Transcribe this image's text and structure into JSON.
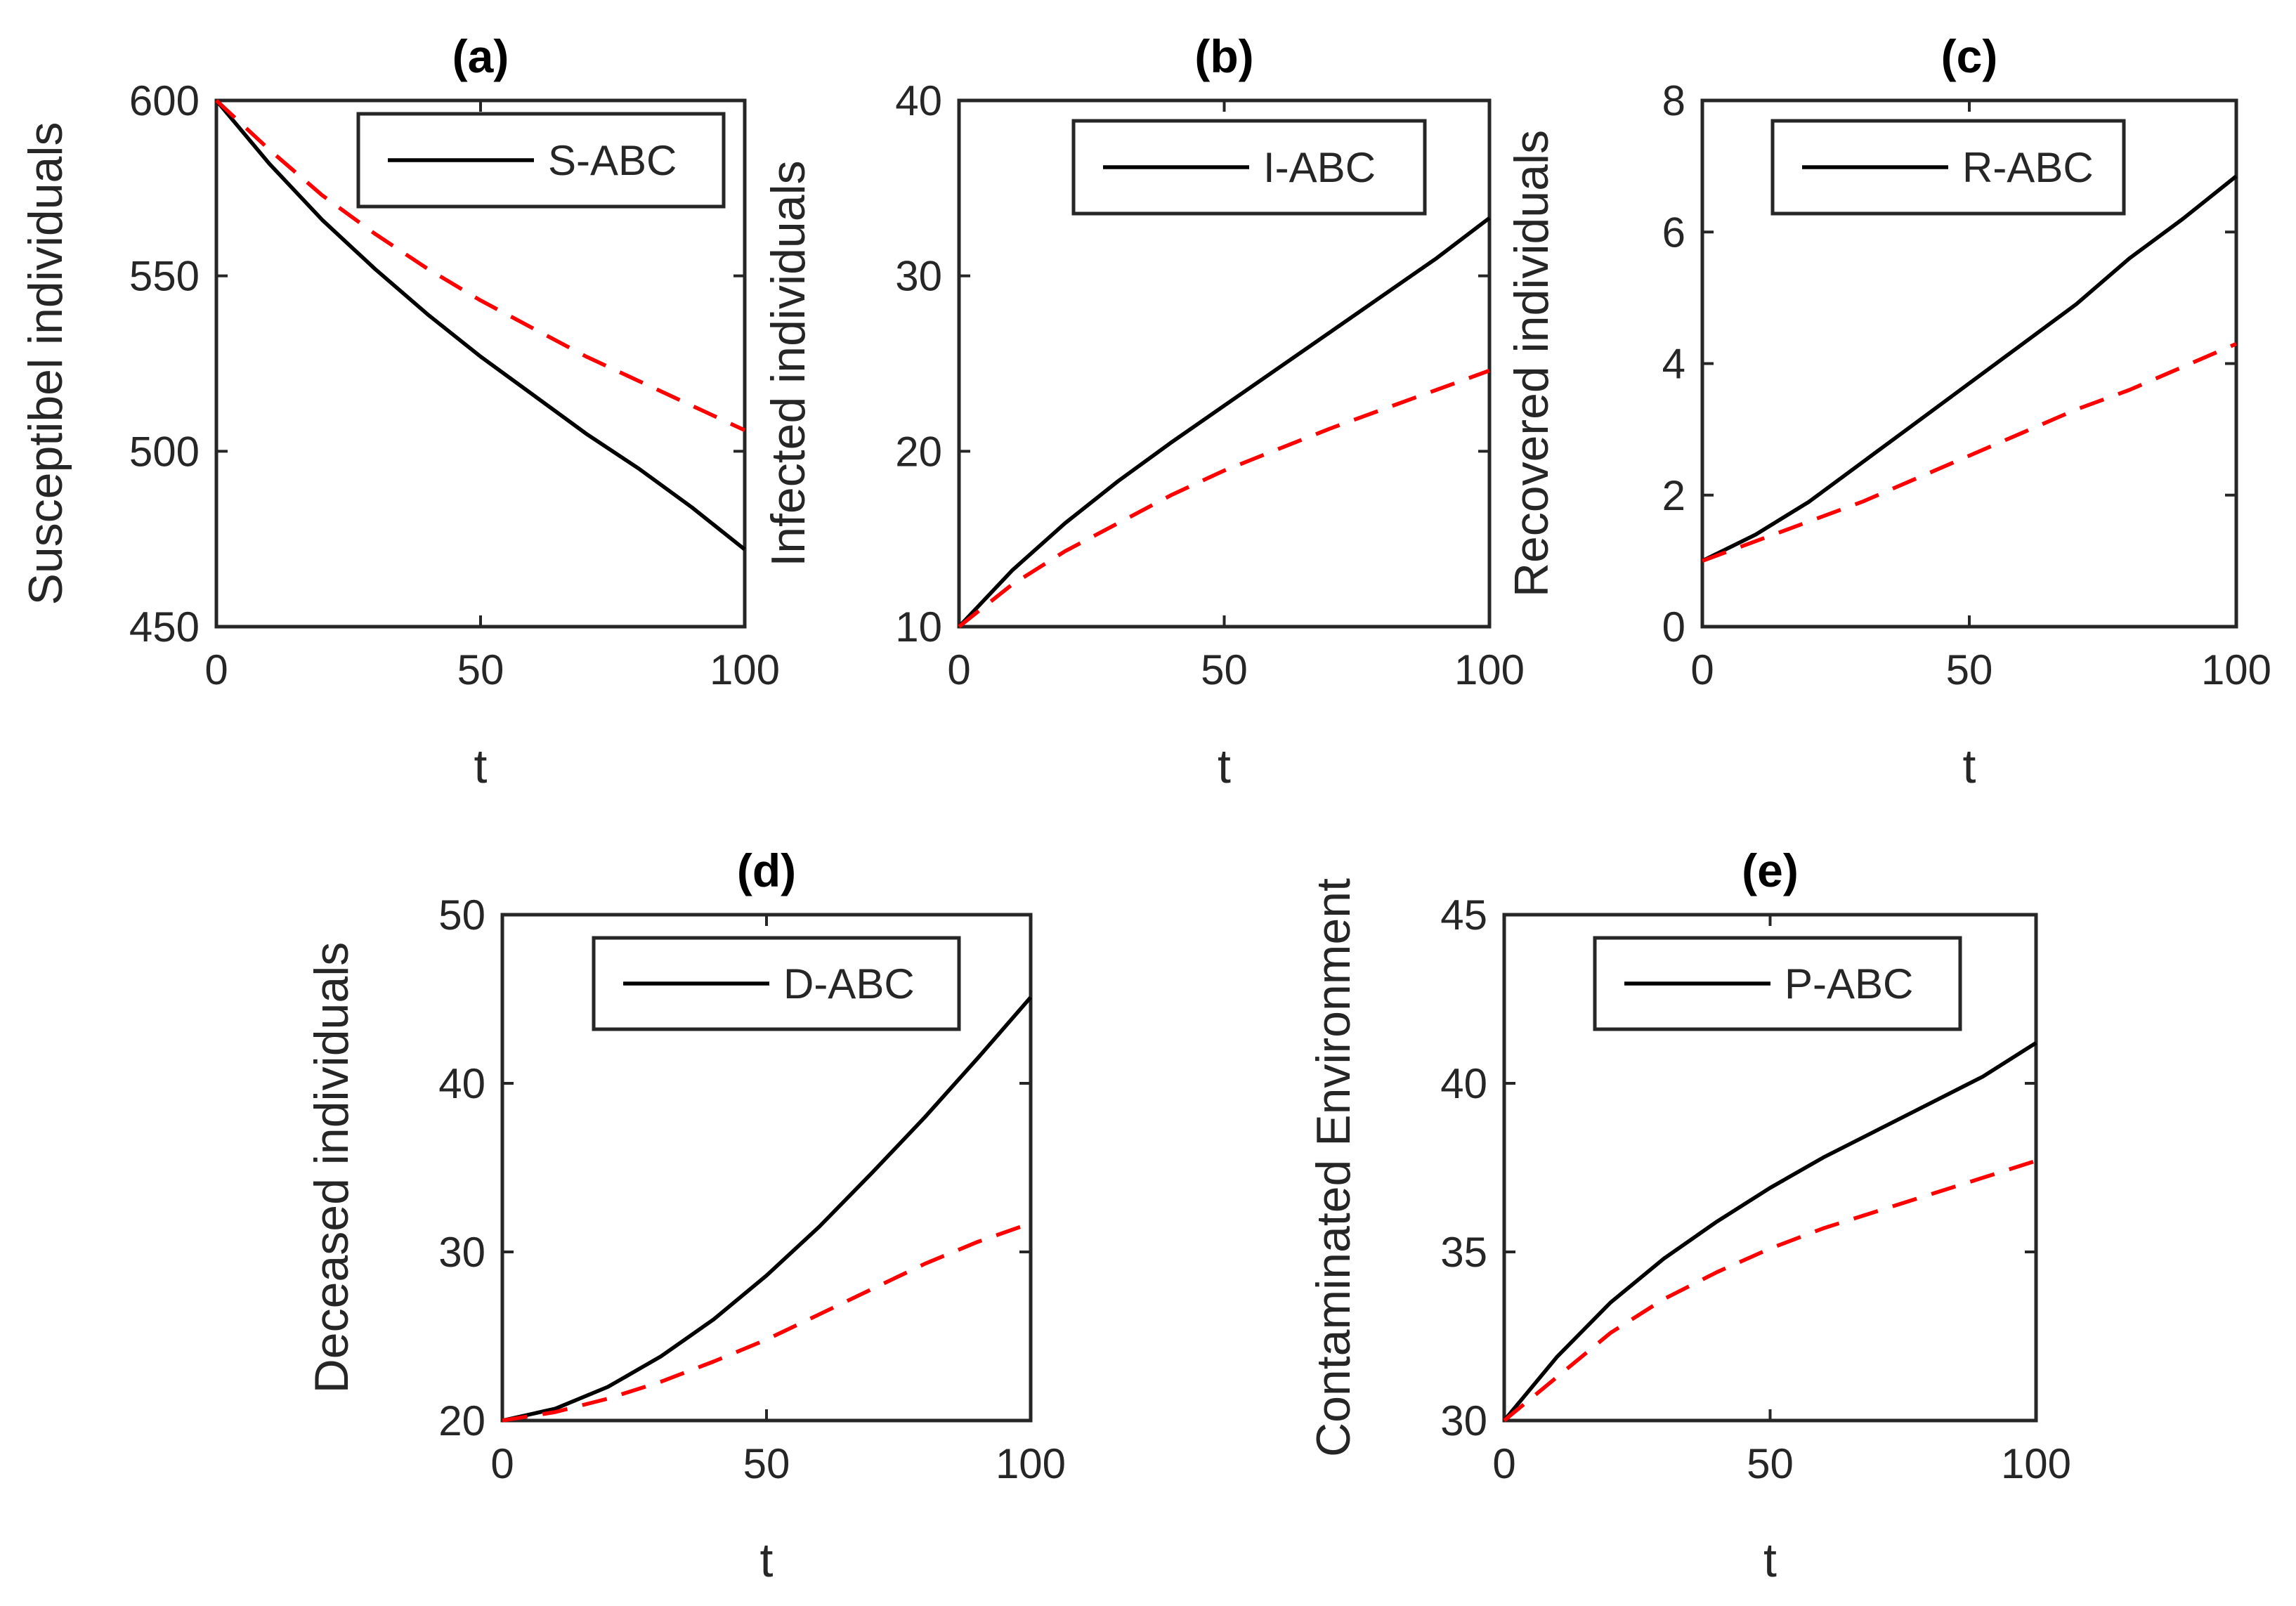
{
  "colors": {
    "series_1": "#000000",
    "series_2": "#ff0000",
    "axes": "#262626",
    "background": "#ffffff"
  },
  "chart_data": [
    {
      "type": "line",
      "title": "(a)",
      "xlabel": "t",
      "ylabel": "Susceptibel individuals",
      "xlim": [
        0,
        100
      ],
      "ylim": [
        450,
        600
      ],
      "xticks": [
        "0",
        "50",
        "100"
      ],
      "yticks": [
        "450",
        "500",
        "550",
        "600"
      ],
      "legend": {
        "position": "top-right",
        "entries": [
          "S-ABC"
        ]
      },
      "x": [
        0,
        10,
        20,
        30,
        40,
        50,
        60,
        70,
        80,
        90,
        100
      ],
      "series": [
        {
          "name": "S-ABC",
          "style": "solid",
          "values": [
            600,
            582,
            566,
            552,
            539,
            527,
            516,
            505,
            495,
            484,
            472
          ]
        },
        {
          "style": "dashed",
          "values": [
            600,
            586,
            573,
            562,
            552,
            543,
            535,
            527,
            520,
            513,
            506
          ]
        }
      ]
    },
    {
      "type": "line",
      "title": "(b)",
      "xlabel": "t",
      "ylabel": "Infected individuals",
      "xlim": [
        0,
        100
      ],
      "ylim": [
        10,
        40
      ],
      "xticks": [
        "0",
        "50",
        "100"
      ],
      "yticks": [
        "10",
        "20",
        "30",
        "40"
      ],
      "legend": {
        "position": "top-right",
        "entries": [
          "I-ABC"
        ]
      },
      "x": [
        0,
        10,
        20,
        30,
        40,
        50,
        60,
        70,
        80,
        90,
        100
      ],
      "series": [
        {
          "name": "I-ABC",
          "style": "solid",
          "values": [
            10,
            13.2,
            15.9,
            18.3,
            20.5,
            22.6,
            24.7,
            26.8,
            28.9,
            31.0,
            33.3
          ]
        },
        {
          "style": "dashed",
          "values": [
            10,
            12.4,
            14.3,
            15.9,
            17.5,
            18.9,
            20.1,
            21.3,
            22.4,
            23.5,
            24.6
          ]
        }
      ]
    },
    {
      "type": "line",
      "title": "(c)",
      "xlabel": "t",
      "ylabel": "Recovered individuals",
      "xlim": [
        0,
        100
      ],
      "ylim": [
        0,
        8
      ],
      "xticks": [
        "0",
        "50",
        "100"
      ],
      "yticks": [
        "0",
        "2",
        "4",
        "6",
        "8"
      ],
      "legend": {
        "position": "top-right",
        "entries": [
          "R-ABC"
        ]
      },
      "x": [
        0,
        10,
        20,
        30,
        40,
        50,
        60,
        70,
        80,
        90,
        100
      ],
      "series": [
        {
          "name": "R-ABC",
          "style": "solid",
          "values": [
            1.0,
            1.4,
            1.9,
            2.5,
            3.1,
            3.7,
            4.3,
            4.9,
            5.6,
            6.2,
            6.85
          ]
        },
        {
          "style": "dashed",
          "values": [
            1.0,
            1.3,
            1.6,
            1.9,
            2.25,
            2.6,
            2.95,
            3.3,
            3.6,
            3.95,
            4.3
          ]
        }
      ]
    },
    {
      "type": "line",
      "title": "(d)",
      "xlabel": "t",
      "ylabel": "Deceased individuals",
      "xlim": [
        0,
        100
      ],
      "ylim": [
        20,
        50
      ],
      "xticks": [
        "0",
        "50",
        "100"
      ],
      "yticks": [
        "20",
        "30",
        "40",
        "50"
      ],
      "legend": {
        "position": "top-right",
        "entries": [
          "D-ABC"
        ]
      },
      "x": [
        0,
        10,
        20,
        30,
        40,
        50,
        60,
        70,
        80,
        90,
        100
      ],
      "series": [
        {
          "name": "D-ABC",
          "style": "solid",
          "values": [
            20,
            20.7,
            22.0,
            23.8,
            26.0,
            28.6,
            31.5,
            34.7,
            38.0,
            41.5,
            45.1
          ]
        },
        {
          "style": "dashed",
          "values": [
            20,
            20.5,
            21.3,
            22.3,
            23.5,
            24.8,
            26.3,
            27.8,
            29.3,
            30.6,
            31.7
          ]
        }
      ]
    },
    {
      "type": "line",
      "title": "(e)",
      "xlabel": "t",
      "ylabel": "Contaminated Environment",
      "xlim": [
        0,
        100
      ],
      "ylim": [
        30,
        45
      ],
      "xticks": [
        "0",
        "50",
        "100"
      ],
      "yticks": [
        "30",
        "35",
        "40",
        "45"
      ],
      "legend": {
        "position": "top-right",
        "entries": [
          "P-ABC"
        ]
      },
      "x": [
        0,
        10,
        20,
        30,
        40,
        50,
        60,
        70,
        80,
        90,
        100
      ],
      "series": [
        {
          "name": "P-ABC",
          "style": "solid",
          "values": [
            30,
            31.9,
            33.5,
            34.8,
            35.9,
            36.9,
            37.8,
            38.6,
            39.4,
            40.2,
            41.2
          ]
        },
        {
          "style": "dashed",
          "values": [
            30,
            31.3,
            32.6,
            33.6,
            34.4,
            35.1,
            35.7,
            36.2,
            36.7,
            37.2,
            37.7
          ]
        }
      ]
    }
  ]
}
